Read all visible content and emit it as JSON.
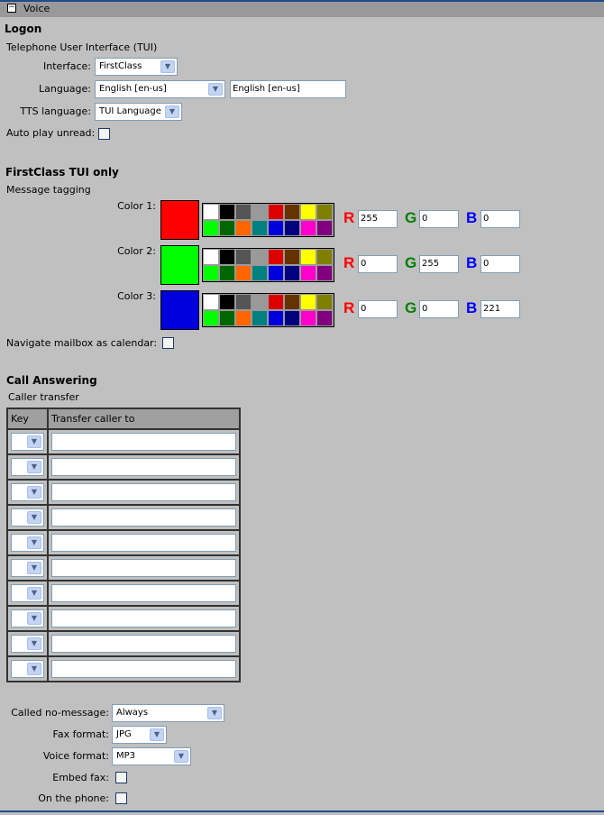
{
  "header": {
    "title": "Voice",
    "collapse_icon": "minus-icon"
  },
  "logon": {
    "title": "Logon",
    "subtitle": "Telephone User Interface (TUI)",
    "interface_label": "Interface:",
    "interface_value": "FirstClass",
    "language_label": "Language:",
    "language_value": "English [en-us]",
    "language_text": "English [en-us]",
    "tts_label": "TTS language:",
    "tts_value": "TUI Language",
    "autoplay_label": "Auto play unread:",
    "autoplay_checked": false
  },
  "tui": {
    "title": "FirstClass TUI only",
    "subtitle": "Message tagging",
    "palette": [
      "#ffffff",
      "#000000",
      "#555555",
      "#999999",
      "#dd0000",
      "#663300",
      "#ffff00",
      "#7f7f00",
      "#00ff00",
      "#006600",
      "#ff6600",
      "#008080",
      "#0000dd",
      "#000080",
      "#ff00cc",
      "#800080"
    ],
    "colors": [
      {
        "label": "Color 1:",
        "swatch": "#ff0000",
        "r": "255",
        "g": "0",
        "b": "0"
      },
      {
        "label": "Color 2:",
        "swatch": "#00ff00",
        "r": "0",
        "g": "255",
        "b": "0"
      },
      {
        "label": "Color 3:",
        "swatch": "#0000dd",
        "r": "0",
        "g": "0",
        "b": "221"
      }
    ],
    "r_label": "R",
    "g_label": "G",
    "b_label": "B",
    "navigate_label": "Navigate mailbox as calendar:",
    "navigate_checked": false
  },
  "call": {
    "title": "Call Answering",
    "subtitle": "Caller transfer",
    "columns": [
      "Key",
      "Transfer caller to"
    ],
    "rows": [
      {
        "key": "",
        "to": ""
      },
      {
        "key": "",
        "to": ""
      },
      {
        "key": "",
        "to": ""
      },
      {
        "key": "",
        "to": ""
      },
      {
        "key": "",
        "to": ""
      },
      {
        "key": "",
        "to": ""
      },
      {
        "key": "",
        "to": ""
      },
      {
        "key": "",
        "to": ""
      },
      {
        "key": "",
        "to": ""
      },
      {
        "key": "",
        "to": ""
      }
    ],
    "nomsg_label": "Called no-message:",
    "nomsg_value": "Always",
    "fax_label": "Fax format:",
    "fax_value": "JPG",
    "voice_label": "Voice format:",
    "voice_value": "MP3",
    "embed_label": "Embed fax:",
    "embed_checked": false,
    "phone_label": "On the phone:",
    "phone_checked": false
  }
}
